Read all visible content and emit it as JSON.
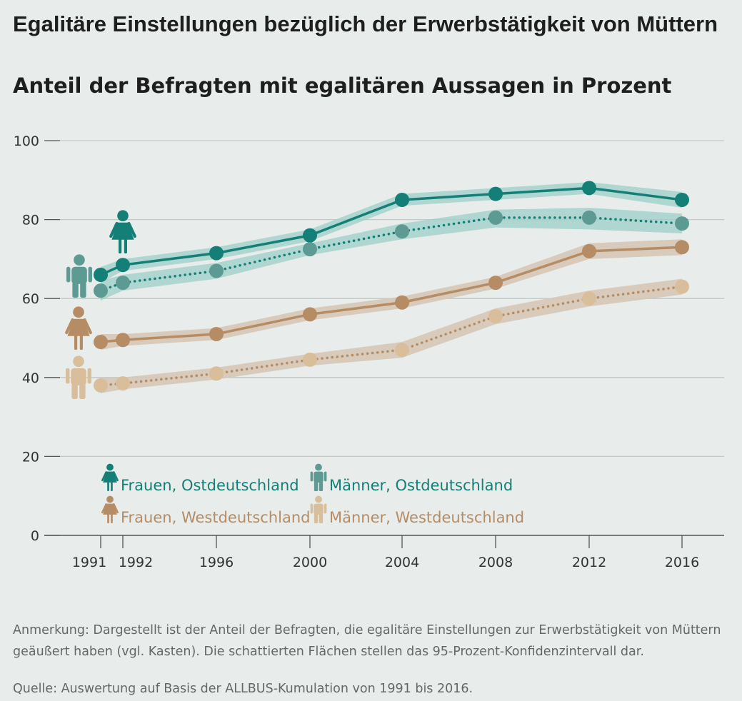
{
  "title": "Egalitäre Einstellungen bezüglich der Erwerbstätigkeit von Müttern",
  "subtitle": "Anteil der Befragten mit egalitären Aussagen in Prozent",
  "note": "Anmerkung: Dargestellt ist der Anteil der Befragten, die egalitäre Einstellungen zur Erwerbstätigkeit von Müttern geäußert haben (vgl. Kasten). Die schattierten Flächen stellen das 95-Prozent-Konfidenzintervall dar.",
  "source": "Quelle: Auswertung auf Basis der ALLBUS-Kumulation von 1991 bis 2016.",
  "colors": {
    "frauen_ost": "#137f76",
    "maenner_ost": "#5e9a94",
    "frauen_west": "#b68c64",
    "maenner_west": "#d8be9b",
    "band_ost": "#9ccfc7",
    "band_west": "#d6c8b6",
    "grid": "#c2c8c5",
    "axis": "#555555"
  },
  "chart_data": {
    "type": "line",
    "x": [
      1991,
      1992,
      1996,
      2000,
      2004,
      2008,
      2012,
      2016
    ],
    "xticks": [
      "1991",
      "1992",
      "1996",
      "2000",
      "2004",
      "2008",
      "2012",
      "2016"
    ],
    "yticks": [
      "0",
      "20",
      "40",
      "60",
      "80",
      "100"
    ],
    "ylim": [
      0,
      100
    ],
    "grid": true,
    "confidence_bands": true,
    "legend_position": "bottom-left",
    "series": [
      {
        "key": "frauen_ost",
        "name": "Frauen, Ostdeutschland",
        "style": "solid",
        "values": [
          66,
          68.5,
          71.5,
          76,
          85,
          86.5,
          88,
          85
        ],
        "lower": [
          64,
          67,
          70,
          74.5,
          83.5,
          85,
          86.5,
          83
        ],
        "upper": [
          68,
          70,
          73,
          77.5,
          86.5,
          88,
          89.5,
          87
        ]
      },
      {
        "key": "maenner_ost",
        "name": "Männer, Ostdeutschland",
        "style": "dotted",
        "values": [
          62,
          64,
          67,
          72.5,
          77,
          80.5,
          80.5,
          79
        ],
        "lower": [
          59.5,
          62,
          65,
          71,
          75,
          78,
          77.5,
          76.5
        ],
        "upper": [
          64.5,
          66,
          69,
          74,
          79,
          82.5,
          83,
          81.5
        ]
      },
      {
        "key": "frauen_west",
        "name": "Frauen, Westdeutschland",
        "style": "solid",
        "values": [
          49,
          49.5,
          51,
          56,
          59,
          64,
          72,
          73
        ],
        "lower": [
          47,
          48,
          49.5,
          54.5,
          57.5,
          62.5,
          70,
          71
        ],
        "upper": [
          51,
          51,
          52.5,
          57.5,
          60.5,
          65.5,
          74,
          75
        ]
      },
      {
        "key": "maenner_west",
        "name": "Männer, Westdeutschland",
        "style": "dotted",
        "values": [
          38,
          38.5,
          41,
          44.5,
          47,
          55.5,
          60,
          63
        ],
        "lower": [
          36,
          37,
          39.5,
          43,
          45,
          53.5,
          58,
          61
        ],
        "upper": [
          40,
          40,
          42.5,
          46,
          49,
          57.5,
          62,
          65
        ]
      }
    ]
  }
}
